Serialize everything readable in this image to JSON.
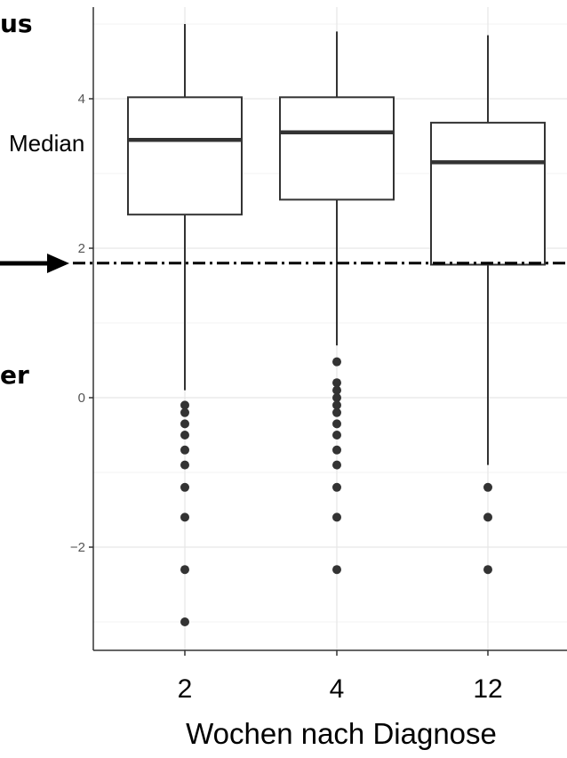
{
  "chart_data": {
    "type": "box",
    "xlabel": "Wochen nach Diagnose",
    "ylabel": "",
    "categories": [
      "2",
      "4",
      "12"
    ],
    "ylim": [
      -3.35,
      5.25
    ],
    "yticks": [
      -2,
      0,
      2,
      4
    ],
    "ytick_labels": [
      "−2",
      "0",
      "2",
      "4"
    ],
    "grid": true,
    "boxes": [
      {
        "category": "2",
        "whisker_low": 0.1,
        "q1": 2.45,
        "median": 3.45,
        "q3": 4.02,
        "whisker_high": 5.0,
        "outliers": [
          -0.1,
          -0.2,
          -0.35,
          -0.5,
          -0.7,
          -0.9,
          -1.2,
          -1.6,
          -2.3,
          -3.0
        ]
      },
      {
        "category": "4",
        "whisker_low": 0.7,
        "q1": 2.65,
        "median": 3.55,
        "q3": 4.02,
        "whisker_high": 4.9,
        "outliers": [
          0.48,
          0.2,
          0.1,
          0.0,
          -0.1,
          -0.2,
          -0.35,
          -0.5,
          -0.7,
          -0.9,
          -1.2,
          -1.6,
          -2.3
        ]
      },
      {
        "category": "12",
        "whisker_low": -0.9,
        "q1": 1.78,
        "median": 3.15,
        "q3": 3.68,
        "whisker_high": 4.85,
        "outliers": [
          -1.2,
          -1.6,
          -2.3
        ]
      }
    ],
    "reference_line": {
      "y": 1.8,
      "style": "dash-dot"
    }
  },
  "annotations": {
    "median_label": "Median",
    "side_text_top": "us",
    "side_text_bottom": "er",
    "arrow": "right-arrow"
  }
}
